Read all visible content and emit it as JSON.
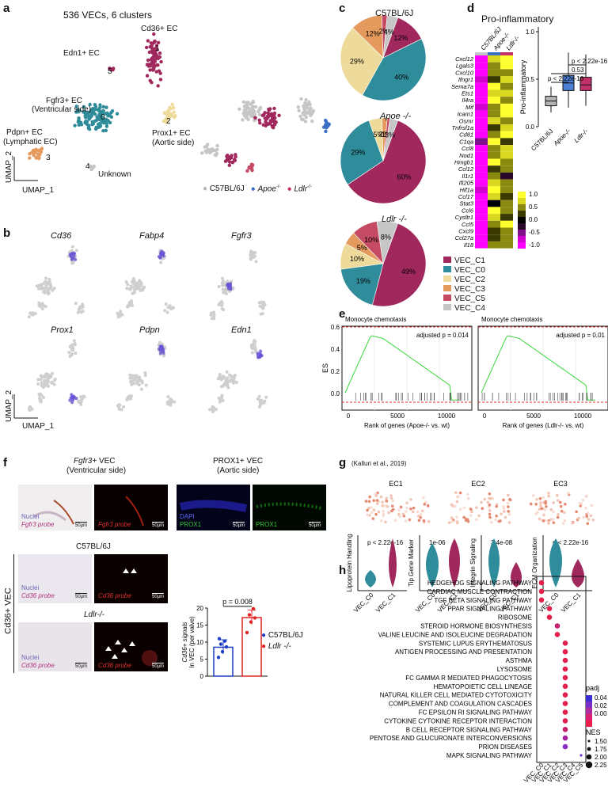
{
  "panels": {
    "a": "a",
    "b": "b",
    "c": "c",
    "d": "d",
    "e": "e",
    "f": "f",
    "g": "g",
    "h": "h"
  },
  "a": {
    "title": "536 VECs, 6 clusters",
    "clusters": [
      {
        "label": "Cd36+ EC",
        "num": "1"
      },
      {
        "label": "Edn1+ EC",
        "num": "5"
      },
      {
        "label": "Fgfr3+ EC",
        "sub": "(Ventricular side)",
        "num": "0"
      },
      {
        "label": "Prox1+ EC",
        "sub": "(Aortic side)",
        "num": "2"
      },
      {
        "label": "Pdpn+ EC",
        "sub": "(Lymphatic EC)",
        "num": "3"
      },
      {
        "label": "Unknown",
        "num": "4"
      }
    ],
    "axis_x": "UMAP_1",
    "axis_y": "UMAP_2",
    "legend": [
      {
        "name": "C57BL/6J",
        "color": "#b5b5b5"
      },
      {
        "name": "Apoe",
        "sup": "-/-",
        "color": "#3a6fc4"
      },
      {
        "name": "Ldlr",
        "sup": "-/-",
        "color": "#c2306a"
      }
    ]
  },
  "b": {
    "genes": [
      "Cd36",
      "Fabp4",
      "Fgfr3",
      "Prox1",
      "Pdpn",
      "Edn1"
    ],
    "axis_x": "UMAP_1",
    "axis_y": "UMAP_2"
  },
  "c": {
    "pies": [
      {
        "title": "C57BL/6J",
        "slices": [
          {
            "c": "VEC_C1",
            "v": 12
          },
          {
            "c": "VEC_C0",
            "v": 40
          },
          {
            "c": "VEC_C2",
            "v": 29
          },
          {
            "c": "VEC_C3",
            "v": 12
          },
          {
            "c": "VEC_C5",
            "v": 2
          },
          {
            "c": "VEC_C4",
            "v": 4
          }
        ]
      },
      {
        "title": "Apoe -/-",
        "slices": [
          {
            "c": "VEC_C1",
            "v": 60
          },
          {
            "c": "VEC_C0",
            "v": 29
          },
          {
            "c": "VEC_C2",
            "v": 5
          },
          {
            "c": "VEC_C3",
            "v": 2
          },
          {
            "c": "VEC_C5",
            "v": 1
          },
          {
            "c": "VEC_C4",
            "v": 3
          }
        ]
      },
      {
        "title": "Ldlr -/-",
        "slices": [
          {
            "c": "VEC_C1",
            "v": 49
          },
          {
            "c": "VEC_C0",
            "v": 19
          },
          {
            "c": "VEC_C2",
            "v": 10
          },
          {
            "c": "VEC_C3",
            "v": 5
          },
          {
            "c": "VEC_C5",
            "v": 10
          },
          {
            "c": "VEC_C4",
            "v": 8
          }
        ]
      }
    ],
    "legend": [
      {
        "name": "VEC_C1",
        "color": "#a0285c"
      },
      {
        "name": "VEC_C0",
        "color": "#2f8c9a"
      },
      {
        "name": "VEC_C2",
        "color": "#eedb9b"
      },
      {
        "name": "VEC_C3",
        "color": "#e59a5d"
      },
      {
        "name": "VEC_C5",
        "color": "#c54a63"
      },
      {
        "name": "VEC_C4",
        "color": "#c6c6c6"
      }
    ]
  },
  "d": {
    "title": "Pro-inflammatory",
    "cols": [
      "C57BL/6J",
      "Apoe-/-",
      "Ldlr-/-"
    ],
    "genes": [
      "Cxcl12",
      "Lgals3",
      "Cxcl10",
      "Ifngr1",
      "Sema7a",
      "Ets1",
      "Il4ra",
      "Mif",
      "Icam1",
      "Osmr",
      "Tnfrsf1a",
      "Cd81",
      "C1qa",
      "Ccl8",
      "Nod1",
      "Hmgb1",
      "Ccl12",
      "Il1r1",
      "Ifi205",
      "Hif1a",
      "Ccl17",
      "Stat3",
      "Ccl6",
      "Cysltr1",
      "Ccl5",
      "Cxcl9",
      "Ccl27a",
      "Il18"
    ],
    "colorbar": [
      "1.0",
      "0.5",
      "0.0",
      "-0.5",
      "-1.0"
    ],
    "box": {
      "ylabel": "Pro-inflammatory",
      "yticks": [
        "1.0",
        "0.5",
        "0.0"
      ],
      "groups": [
        "C57BL/6J",
        "Apoe-/-",
        "Ldlr-/-"
      ],
      "p1": "p < 2.22e-16",
      "p2": "0.53",
      "p3": "p < 2.22e-16"
    }
  },
  "e": {
    "plots": [
      {
        "title": "Monocyte chemotaxis",
        "p": "adjusted p = 0.014",
        "xlabel": "Rank of genes (Apoe-/- vs. wt)"
      },
      {
        "title": "Monocyte chemotaxis",
        "p": "adjusted p = 0.01",
        "xlabel": "Rank of genes (Ldlr-/- vs. wt)"
      }
    ],
    "ylabel": "ES",
    "yticks": [
      "0.6",
      "0.4",
      "0.2",
      "0.0"
    ],
    "xticks": [
      "0",
      "5000",
      "10000"
    ]
  },
  "f": {
    "top_titles": [
      {
        "gene": "Fgfr3+",
        "rest": " VEC",
        "sub": "(Ventricular side)"
      },
      {
        "gene": "PROX1+ VEC",
        "rest": "",
        "sub": "(Aortic side)"
      }
    ],
    "mid_title": "C57BL/6J",
    "low_title": "Ldlr-/-",
    "side": "Cd36+ VEC",
    "nuclei": "Nuclei",
    "probes": {
      "fgfr3": "Fgfr3 probe",
      "cd36": "Cd36 probe"
    },
    "dapi": "DAPI",
    "prox1": "PROX1",
    "scale": "50µm",
    "bar": {
      "p": "p = 0.008",
      "ylabel1": "Cd36+ signals",
      "ylabel2": "In VEC (per valve)",
      "yticks": [
        "0",
        "5",
        "10",
        "15",
        "20"
      ],
      "means": [
        8.5,
        17.2
      ],
      "points": [
        [
          5.5,
          7.2,
          8.6,
          9.4,
          10.3,
          11.0
        ],
        [
          12.8,
          15.9,
          17.1,
          18.0,
          19.8
        ]
      ]
    },
    "legend": [
      {
        "name": "C57BL/6J",
        "color": "#1f3fc4"
      },
      {
        "name": "Ldlr -/-",
        "color": "#e02424"
      }
    ]
  },
  "g": {
    "ref": "(Kalluri et al., 2019)",
    "umaps": [
      "EC1",
      "EC2",
      "EC3"
    ],
    "violins": [
      {
        "ylabel": "Lipoprotein Handling",
        "p": "p < 2.22e-16"
      },
      {
        "ylabel": "Tip Gene Marker",
        "p": "1e-06"
      },
      {
        "ylabel": "Integrin Signaling",
        "p": "3.4e-08"
      },
      {
        "ylabel": "ECM Organization",
        "p": "p < 2.22e-16"
      }
    ],
    "xcats": [
      "VEC_C0",
      "VEC_C1"
    ]
  },
  "h": {
    "pathways": [
      "HEDGEHOG SIGNALING PATHWAY",
      "CARDIAC MUSCLE CONTRACTION",
      "TGF BETA SIGNALING PATHWAY",
      "PPAR SIGNALING PATHWAY",
      "RIBOSOME",
      "STEROID HORMONE BIOSYNTHESIS",
      "VALINE LEUCINE AND ISOLEUCINE DEGRADATION",
      "SYSTEMIC LUPUS ERYTHEMATOSUS",
      "ANTIGEN PROCESSING AND PRESENTATION",
      "ASTHMA",
      "LYSOSOME",
      "FC GAMMA R MEDIATED PHAGOCYTOSIS",
      "HEMATOPOIETIC CELL LINEAGE",
      "NATURAL KILLER CELL MEDIATED CYTOTOXICITY",
      "COMPLEMENT AND COAGULATION CASCADES",
      "FC EPSILON RI SIGNALING PATHWAY",
      "CYTOKINE CYTOKINE RECEPTOR INTERACTION",
      "B CELL RECEPTOR SIGNALING PATHWAY",
      "PENTOSE AND GLUCURONATE INTERCONVERSIONS",
      "PRION DISEASES",
      "MAPK SIGNALING PATHWAY"
    ],
    "clusters": [
      "VEC_C0",
      "VEC_C1",
      "VEC_C2",
      "VEC_C3",
      "VEC_C4",
      "VEC_C5"
    ],
    "dots": [
      [
        0,
        0
      ],
      [
        0,
        1
      ],
      [
        0,
        2
      ],
      [
        1,
        3
      ],
      [
        1,
        4
      ],
      [
        2,
        5
      ],
      [
        2,
        6
      ],
      [
        3,
        7
      ],
      [
        3,
        8
      ],
      [
        3,
        9
      ],
      [
        3,
        10
      ],
      [
        3,
        11
      ],
      [
        3,
        12
      ],
      [
        3,
        13
      ],
      [
        3,
        14
      ],
      [
        3,
        15
      ],
      [
        3,
        16
      ],
      [
        3,
        17
      ],
      [
        3,
        18
      ],
      [
        3,
        19
      ],
      [
        5,
        20
      ]
    ],
    "padj_title": "padj",
    "padj_ticks": [
      "0.04",
      "0.02",
      "0.00"
    ],
    "nes_title": "NES",
    "nes_ticks": [
      "1.50",
      "1.75",
      "2.00",
      "2.25"
    ]
  }
}
